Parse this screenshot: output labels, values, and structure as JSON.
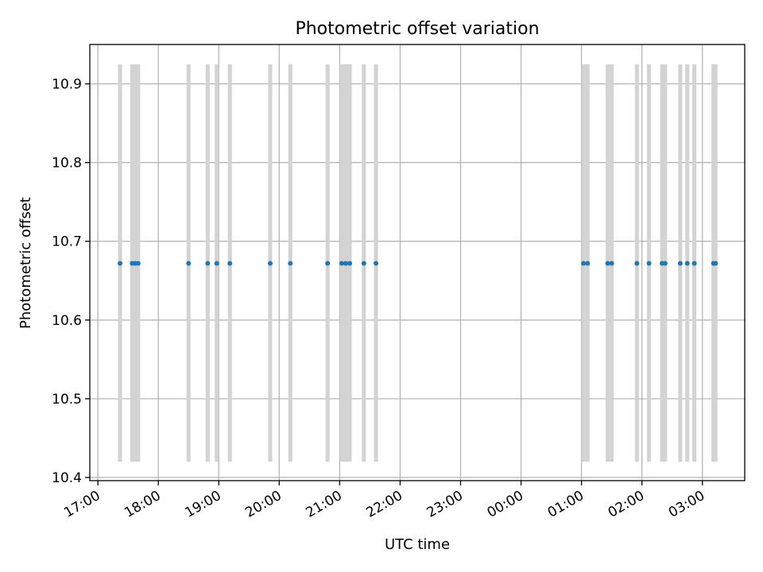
{
  "chart_data": {
    "type": "scatter",
    "title": "Photometric offset variation",
    "xlabel": "UTC time",
    "ylabel": "Photometric offset",
    "x_type": "time",
    "x_domain": [
      "16:52",
      "27:42"
    ],
    "xticks": [
      "17:00",
      "18:00",
      "19:00",
      "20:00",
      "21:00",
      "22:00",
      "23:00",
      "00:00",
      "01:00",
      "02:00",
      "03:00"
    ],
    "ylim": [
      10.396,
      10.95
    ],
    "yticks": [
      "10.4",
      "10.5",
      "10.6",
      "10.7",
      "10.8",
      "10.9"
    ],
    "grid": true,
    "legend": "none",
    "colors": {
      "points": "#1f77b4",
      "bands": "#d3d3d3",
      "grid": "#b0b0b0"
    },
    "exposure_bands": {
      "y_range": [
        10.42,
        10.925
      ],
      "intervals": [
        [
          "17:20",
          "17:24"
        ],
        [
          "17:32",
          "17:36"
        ],
        [
          "17:35",
          "17:39"
        ],
        [
          "17:38",
          "17:42"
        ],
        [
          "18:28",
          "18:32"
        ],
        [
          "18:47",
          "18:51"
        ],
        [
          "18:56",
          "19:00"
        ],
        [
          "19:09",
          "19:13"
        ],
        [
          "19:49",
          "19:53"
        ],
        [
          "20:09",
          "20:13"
        ],
        [
          "20:46",
          "20:50"
        ],
        [
          "21:00",
          "21:04"
        ],
        [
          "21:04",
          "21:08"
        ],
        [
          "21:08",
          "21:12"
        ],
        [
          "21:22",
          "21:26"
        ],
        [
          "21:34",
          "21:38"
        ],
        [
          "01:00",
          "01:04"
        ],
        [
          "01:04",
          "01:08"
        ],
        [
          "01:24",
          "01:28"
        ],
        [
          "01:28",
          "01:32"
        ],
        [
          "01:53",
          "01:57"
        ],
        [
          "02:05",
          "02:09"
        ],
        [
          "02:18",
          "02:22"
        ],
        [
          "02:21",
          "02:25"
        ],
        [
          "02:36",
          "02:40"
        ],
        [
          "02:43",
          "02:47"
        ],
        [
          "02:50",
          "02:54"
        ],
        [
          "03:09",
          "03:13"
        ],
        [
          "03:11",
          "03:15"
        ]
      ]
    },
    "points": {
      "y": 10.672,
      "x": [
        "17:22",
        "17:34",
        "17:37",
        "17:40",
        "18:30",
        "18:49",
        "18:58",
        "19:11",
        "19:51",
        "20:11",
        "20:48",
        "21:02",
        "21:06",
        "21:10",
        "21:24",
        "21:36",
        "01:02",
        "01:06",
        "01:26",
        "01:30",
        "01:55",
        "02:07",
        "02:20",
        "02:23",
        "02:38",
        "02:45",
        "02:52",
        "03:11",
        "03:13"
      ]
    }
  }
}
